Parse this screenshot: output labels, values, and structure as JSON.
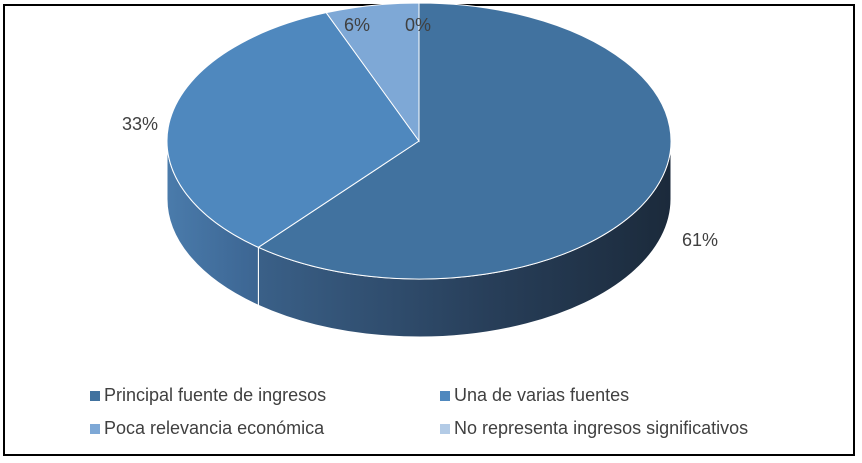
{
  "chart_data": {
    "type": "pie",
    "title": "",
    "style": "3d",
    "legend_position": "bottom",
    "slices": [
      {
        "label": "Principal fuente de ingresos",
        "value": 61,
        "display": "61%",
        "color": "#41729f"
      },
      {
        "label": "Una de varias fuentes",
        "value": 33,
        "display": "33%",
        "color": "#4f88be"
      },
      {
        "label": "Poca relevancia económica",
        "value": 6,
        "display": "6%",
        "color": "#7ea8d6"
      },
      {
        "label": "No representa ingresos significativos",
        "value": 0,
        "display": "0%",
        "color": "#b3cbe6"
      }
    ]
  }
}
